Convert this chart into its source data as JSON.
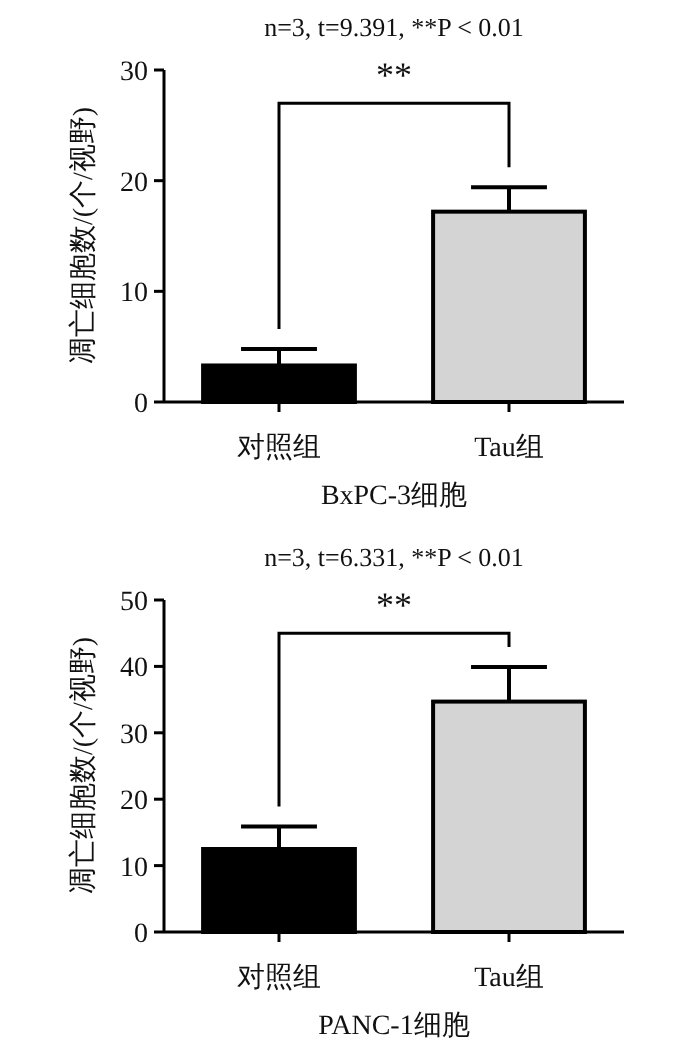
{
  "chart_data": [
    {
      "type": "bar",
      "title": "n=3, t=9.391, **P < 0.01",
      "xlabel": "BxPC-3细胞",
      "ylabel": "凋亡细胞数/(个/视野)",
      "categories": [
        "对照组",
        "Tau组"
      ],
      "values": [
        3.3,
        17.2
      ],
      "errors": [
        1.5,
        2.2
      ],
      "colors": [
        "#000000",
        "#d4d4d4"
      ],
      "ylim": [
        0,
        30
      ],
      "yticks": [
        0,
        10,
        20,
        30
      ],
      "annotations": [
        "**"
      ]
    },
    {
      "type": "bar",
      "title": "n=3, t=6.331, **P < 0.01",
      "xlabel": "PANC-1细胞",
      "ylabel": "凋亡细胞数/(个/视野)",
      "categories": [
        "对照组",
        "Tau组"
      ],
      "values": [
        12.5,
        34.7
      ],
      "errors": [
        3.4,
        5.2
      ],
      "colors": [
        "#000000",
        "#d4d4d4"
      ],
      "ylim": [
        0,
        50
      ],
      "yticks": [
        0,
        10,
        20,
        30,
        40,
        50
      ],
      "annotations": [
        "**"
      ]
    }
  ]
}
